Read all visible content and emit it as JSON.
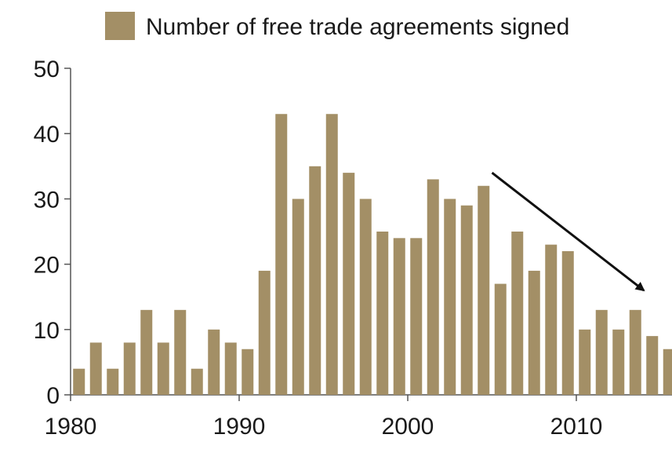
{
  "chart_data": {
    "type": "bar",
    "title": "",
    "xlabel": "",
    "ylabel": "",
    "series": [
      {
        "name": "Number of free trade agreements signed",
        "color": "#a38f66",
        "x": [
          1980,
          1981,
          1982,
          1983,
          1984,
          1985,
          1986,
          1987,
          1988,
          1989,
          1990,
          1991,
          1992,
          1993,
          1994,
          1995,
          1996,
          1997,
          1998,
          1999,
          2000,
          2001,
          2002,
          2003,
          2004,
          2005,
          2006,
          2007,
          2008,
          2009,
          2010,
          2011,
          2012,
          2013,
          2014,
          2015
        ],
        "values": [
          4,
          8,
          4,
          8,
          13,
          8,
          13,
          4,
          10,
          8,
          7,
          19,
          43,
          30,
          35,
          43,
          34,
          30,
          25,
          24,
          24,
          33,
          30,
          29,
          32,
          17,
          25,
          19,
          23,
          22,
          10,
          13,
          10,
          13,
          9,
          7
        ]
      }
    ],
    "xticks": [
      "1980",
      "1990",
      "2000",
      "2010"
    ],
    "yticks": [
      "0",
      "10",
      "20",
      "30",
      "40",
      "50"
    ],
    "ylim": [
      0,
      50
    ],
    "xlim": [
      1980,
      2015
    ],
    "grid": false,
    "legend": "top",
    "annotations": [
      {
        "type": "arrow",
        "from": {
          "x": 2004.5,
          "y": 34
        },
        "to": {
          "x": 2013.5,
          "y": 16
        },
        "color": "#111111"
      }
    ]
  }
}
